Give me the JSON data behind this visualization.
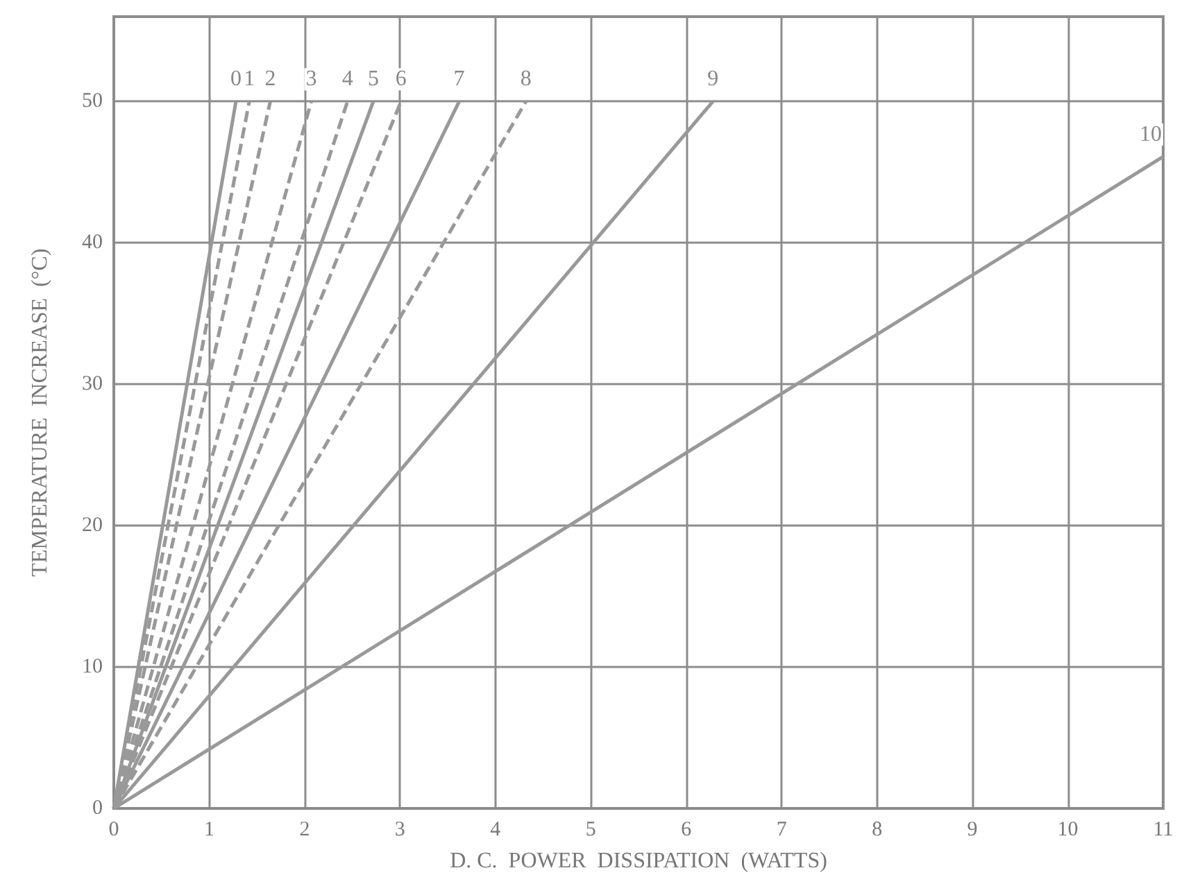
{
  "chart_data": {
    "type": "line",
    "xlabel": "D. C.  POWER  DISSIPATION  (WATTS)",
    "ylabel": "TEMPERATURE  INCREASE  (°C)",
    "xlim": [
      0,
      11
    ],
    "xticks": [
      0,
      1,
      2,
      3,
      4,
      5,
      6,
      7,
      8,
      9,
      10,
      11
    ],
    "ylim": [
      0,
      56
    ],
    "yticks": [
      0,
      10,
      20,
      30,
      40,
      50
    ],
    "grid": true,
    "legend": false,
    "marker": "none",
    "series": [
      {
        "name": "0",
        "color": "#999999",
        "x": [
          0,
          1.28
        ],
        "values": [
          0,
          50
        ],
        "line_style": "solid"
      },
      {
        "name": "1",
        "color": "#999999",
        "x": [
          0,
          1.42
        ],
        "values": [
          0,
          50
        ],
        "line_style": "dashed"
      },
      {
        "name": "2",
        "color": "#999999",
        "x": [
          0,
          1.64
        ],
        "values": [
          0,
          50
        ],
        "line_style": "dashed"
      },
      {
        "name": "3",
        "color": "#999999",
        "x": [
          0,
          2.07
        ],
        "values": [
          0,
          50
        ],
        "line_style": "dashed"
      },
      {
        "name": "4",
        "color": "#999999",
        "x": [
          0,
          2.45
        ],
        "values": [
          0,
          50
        ],
        "line_style": "dashed"
      },
      {
        "name": "5",
        "color": "#999999",
        "x": [
          0,
          2.72
        ],
        "values": [
          0,
          50
        ],
        "line_style": "solid"
      },
      {
        "name": "6",
        "color": "#999999",
        "x": [
          0,
          3.01
        ],
        "values": [
          0,
          50
        ],
        "line_style": "dashed"
      },
      {
        "name": "7",
        "color": "#999999",
        "x": [
          0,
          3.62
        ],
        "values": [
          0,
          50
        ],
        "line_style": "solid"
      },
      {
        "name": "8",
        "color": "#999999",
        "x": [
          0,
          4.32
        ],
        "values": [
          0,
          50
        ],
        "line_style": "dashed"
      },
      {
        "name": "9",
        "color": "#999999",
        "x": [
          0,
          6.28
        ],
        "values": [
          0,
          50
        ],
        "line_style": "solid"
      },
      {
        "name": "10",
        "color": "#999999",
        "x": [
          0,
          11
        ],
        "values": [
          0,
          46.1
        ],
        "line_style": "solid"
      }
    ]
  }
}
